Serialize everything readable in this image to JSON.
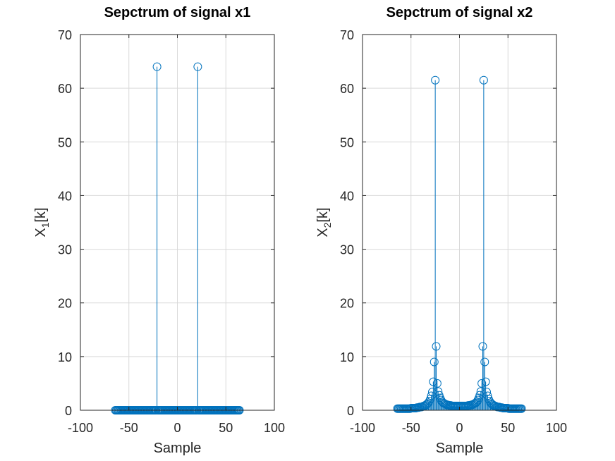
{
  "chart_data": [
    {
      "type": "stem",
      "title": "Sepctrum of signal x1",
      "xlabel": "Sample",
      "ylabel_main": "X",
      "ylabel_sub": "1",
      "ylabel_tail": "[k]",
      "xlim": [
        -100,
        100
      ],
      "ylim": [
        0,
        70
      ],
      "xticks": [
        -100,
        -50,
        0,
        50,
        100
      ],
      "xtick_labels": [
        "-100",
        "-50",
        "0",
        "50",
        "100"
      ],
      "yticks": [
        0,
        10,
        20,
        30,
        40,
        50,
        60,
        70
      ],
      "ytick_labels": [
        "0",
        "10",
        "20",
        "30",
        "40",
        "50",
        "60",
        "70"
      ],
      "grid": true,
      "series": [
        {
          "color": "#0072BD",
          "x_range": [
            -64,
            64
          ],
          "default_value": 0,
          "peaks": [
            {
              "x": -21,
              "y": 64
            },
            {
              "x": 21,
              "y": 64
            }
          ]
        }
      ]
    },
    {
      "type": "stem",
      "title": "Sepctrum of signal x2",
      "xlabel": "Sample",
      "ylabel_main": "X",
      "ylabel_sub": "2",
      "ylabel_tail": "[k]",
      "xlim": [
        -100,
        100
      ],
      "ylim": [
        0,
        70
      ],
      "xticks": [
        -100,
        -50,
        0,
        50,
        100
      ],
      "xtick_labels": [
        "-100",
        "-50",
        "0",
        "50",
        "100"
      ],
      "yticks": [
        0,
        10,
        20,
        30,
        40,
        50,
        60,
        70
      ],
      "ytick_labels": [
        "0",
        "10",
        "20",
        "30",
        "40",
        "50",
        "60",
        "70"
      ],
      "grid": true,
      "series": [
        {
          "color": "#0072BD",
          "x": [
            -64,
            -63,
            -62,
            -61,
            -60,
            -59,
            -58,
            -57,
            -56,
            -55,
            -54,
            -53,
            -52,
            -51,
            -50,
            -49,
            -48,
            -47,
            -46,
            -45,
            -44,
            -43,
            -42,
            -41,
            -40,
            -39,
            -38,
            -37,
            -36,
            -35,
            -34,
            -33,
            -32,
            -31,
            -30,
            -29,
            -28,
            -27,
            -26,
            -25,
            -24,
            -23,
            -22,
            -21,
            -20,
            -19,
            -18,
            -17,
            -16,
            -15,
            -14,
            -13,
            -12,
            -11,
            -10,
            -9,
            -8,
            -7,
            -6,
            -5,
            -4,
            -3,
            -2,
            -1,
            0,
            1,
            2,
            3,
            4,
            5,
            6,
            7,
            8,
            9,
            10,
            11,
            12,
            13,
            14,
            15,
            16,
            17,
            18,
            19,
            20,
            21,
            22,
            23,
            24,
            25,
            26,
            27,
            28,
            29,
            30,
            31,
            32,
            33,
            34,
            35,
            36,
            37,
            38,
            39,
            40,
            41,
            42,
            43,
            44,
            45,
            46,
            47,
            48,
            49,
            50,
            51,
            52,
            53,
            54,
            55,
            56,
            57,
            58,
            59,
            60,
            61,
            62,
            63,
            64
          ],
          "values": [
            0.3,
            0.3,
            0.3,
            0.3,
            0.3,
            0.3,
            0.3,
            0.3,
            0.3,
            0.3,
            0.3,
            0.3,
            0.3,
            0.3,
            0.4,
            0.4,
            0.4,
            0.4,
            0.4,
            0.4,
            0.5,
            0.5,
            0.5,
            0.6,
            0.6,
            0.6,
            0.7,
            0.8,
            0.8,
            0.9,
            1.1,
            1.2,
            1.4,
            1.7,
            2.1,
            2.7,
            3.4,
            5.3,
            9.0,
            61.5,
            11.9,
            5.0,
            3.5,
            2.8,
            2.3,
            1.9,
            1.6,
            1.4,
            1.3,
            1.2,
            1.1,
            1.0,
            1.0,
            0.9,
            0.9,
            0.9,
            0.8,
            0.8,
            0.8,
            0.8,
            0.8,
            0.8,
            0.8,
            0.8,
            0.8,
            0.8,
            0.8,
            0.8,
            0.8,
            0.8,
            0.8,
            0.8,
            0.8,
            0.9,
            0.9,
            0.9,
            1.0,
            1.0,
            1.1,
            1.2,
            1.3,
            1.4,
            1.6,
            1.9,
            2.3,
            2.8,
            3.5,
            5.0,
            11.9,
            61.5,
            9.0,
            5.3,
            3.4,
            2.7,
            2.1,
            1.7,
            1.4,
            1.2,
            1.1,
            0.9,
            0.8,
            0.8,
            0.7,
            0.6,
            0.6,
            0.6,
            0.5,
            0.5,
            0.5,
            0.4,
            0.4,
            0.4,
            0.4,
            0.4,
            0.4,
            0.3,
            0.3,
            0.3,
            0.3,
            0.3,
            0.3,
            0.3,
            0.3,
            0.3,
            0.3,
            0.3,
            0.3,
            0.3,
            0.3
          ]
        }
      ]
    }
  ]
}
